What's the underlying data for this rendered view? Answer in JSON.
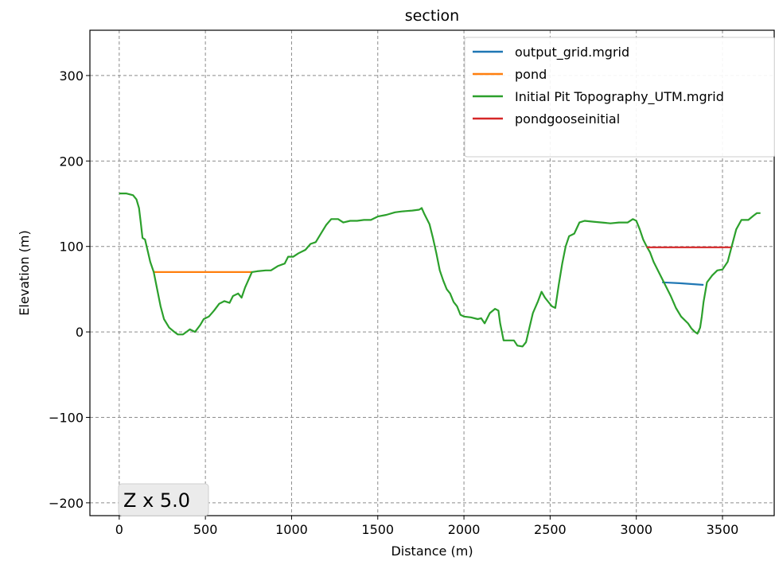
{
  "chart_data": {
    "type": "line",
    "title": "section",
    "xlabel": "Distance (m)",
    "ylabel": "Elevation (m)",
    "xlim": [
      -170,
      3800
    ],
    "ylim": [
      -215,
      353
    ],
    "xticks": [
      0,
      500,
      1000,
      1500,
      2000,
      2500,
      3000,
      3500
    ],
    "yticks": [
      -200,
      -100,
      0,
      100,
      200,
      300
    ],
    "grid": true,
    "legend_position": "top-right",
    "annotation": "Z x 5.0",
    "series": [
      {
        "name": "output_grid.mgrid",
        "color": "#1f77b4",
        "points": [
          [
            3150,
            58
          ],
          [
            3250,
            57
          ],
          [
            3390,
            55
          ]
        ]
      },
      {
        "name": "pond",
        "color": "#ff7f0e",
        "points": [
          [
            200,
            70
          ],
          [
            770,
            70
          ]
        ]
      },
      {
        "name": "Initial Pit Topography_UTM.mgrid",
        "color": "#2ca02c",
        "points": [
          [
            0,
            162
          ],
          [
            40,
            162
          ],
          [
            80,
            160
          ],
          [
            100,
            155
          ],
          [
            115,
            145
          ],
          [
            125,
            128
          ],
          [
            135,
            110
          ],
          [
            150,
            108
          ],
          [
            165,
            95
          ],
          [
            180,
            82
          ],
          [
            200,
            70
          ],
          [
            220,
            50
          ],
          [
            240,
            30
          ],
          [
            260,
            15
          ],
          [
            290,
            5
          ],
          [
            320,
            0
          ],
          [
            340,
            -3
          ],
          [
            370,
            -3
          ],
          [
            390,
            0
          ],
          [
            410,
            3
          ],
          [
            440,
            0
          ],
          [
            470,
            8
          ],
          [
            490,
            15
          ],
          [
            520,
            18
          ],
          [
            550,
            25
          ],
          [
            580,
            33
          ],
          [
            610,
            36
          ],
          [
            640,
            34
          ],
          [
            660,
            42
          ],
          [
            690,
            45
          ],
          [
            710,
            40
          ],
          [
            730,
            52
          ],
          [
            770,
            70
          ],
          [
            800,
            71
          ],
          [
            850,
            72
          ],
          [
            880,
            72
          ],
          [
            920,
            77
          ],
          [
            960,
            80
          ],
          [
            980,
            88
          ],
          [
            1010,
            88
          ],
          [
            1040,
            92
          ],
          [
            1080,
            96
          ],
          [
            1110,
            103
          ],
          [
            1140,
            105
          ],
          [
            1170,
            115
          ],
          [
            1200,
            125
          ],
          [
            1230,
            132
          ],
          [
            1270,
            132
          ],
          [
            1300,
            128
          ],
          [
            1340,
            130
          ],
          [
            1380,
            130
          ],
          [
            1420,
            131
          ],
          [
            1460,
            131
          ],
          [
            1500,
            135
          ],
          [
            1550,
            137
          ],
          [
            1600,
            140
          ],
          [
            1640,
            141
          ],
          [
            1700,
            142
          ],
          [
            1740,
            143
          ],
          [
            1755,
            145
          ],
          [
            1770,
            138
          ],
          [
            1800,
            126
          ],
          [
            1820,
            110
          ],
          [
            1840,
            92
          ],
          [
            1860,
            72
          ],
          [
            1880,
            60
          ],
          [
            1900,
            50
          ],
          [
            1920,
            45
          ],
          [
            1940,
            35
          ],
          [
            1960,
            30
          ],
          [
            1980,
            20
          ],
          [
            2000,
            18
          ],
          [
            2040,
            17
          ],
          [
            2080,
            15
          ],
          [
            2100,
            16
          ],
          [
            2120,
            10
          ],
          [
            2150,
            22
          ],
          [
            2180,
            27
          ],
          [
            2200,
            25
          ],
          [
            2210,
            10
          ],
          [
            2230,
            -10
          ],
          [
            2260,
            -10
          ],
          [
            2290,
            -10
          ],
          [
            2310,
            -16
          ],
          [
            2340,
            -17
          ],
          [
            2360,
            -12
          ],
          [
            2380,
            5
          ],
          [
            2400,
            22
          ],
          [
            2430,
            36
          ],
          [
            2450,
            47
          ],
          [
            2470,
            40
          ],
          [
            2490,
            35
          ],
          [
            2510,
            30
          ],
          [
            2530,
            28
          ],
          [
            2550,
            55
          ],
          [
            2570,
            80
          ],
          [
            2590,
            100
          ],
          [
            2610,
            112
          ],
          [
            2640,
            115
          ],
          [
            2670,
            128
          ],
          [
            2700,
            130
          ],
          [
            2750,
            129
          ],
          [
            2800,
            128
          ],
          [
            2850,
            127
          ],
          [
            2900,
            128
          ],
          [
            2950,
            128
          ],
          [
            2980,
            132
          ],
          [
            3000,
            130
          ],
          [
            3020,
            120
          ],
          [
            3040,
            108
          ],
          [
            3060,
            100
          ],
          [
            3080,
            93
          ],
          [
            3100,
            82
          ],
          [
            3150,
            62
          ],
          [
            3200,
            42
          ],
          [
            3230,
            28
          ],
          [
            3260,
            18
          ],
          [
            3300,
            10
          ],
          [
            3320,
            4
          ],
          [
            3340,
            0
          ],
          [
            3355,
            -2
          ],
          [
            3370,
            5
          ],
          [
            3380,
            18
          ],
          [
            3390,
            35
          ],
          [
            3410,
            58
          ],
          [
            3440,
            66
          ],
          [
            3470,
            72
          ],
          [
            3500,
            73
          ],
          [
            3530,
            82
          ],
          [
            3560,
            105
          ],
          [
            3580,
            120
          ],
          [
            3610,
            131
          ],
          [
            3650,
            131
          ],
          [
            3680,
            136
          ],
          [
            3700,
            139
          ],
          [
            3720,
            139
          ]
        ]
      },
      {
        "name": "pondgooseinitial",
        "color": "#d62728",
        "points": [
          [
            3060,
            99
          ],
          [
            3550,
            99
          ]
        ]
      }
    ]
  }
}
